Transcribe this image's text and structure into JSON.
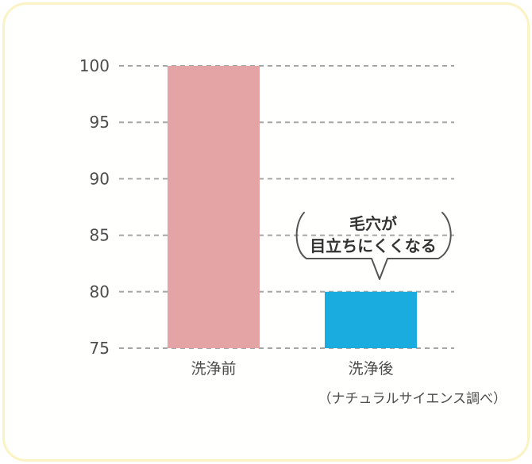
{
  "chart_data": {
    "type": "bar",
    "categories": [
      "洗浄前",
      "洗浄後"
    ],
    "values": [
      100,
      80
    ],
    "ylim": [
      75,
      100
    ],
    "yticks": [
      75,
      80,
      85,
      90,
      95,
      100
    ],
    "colors": [
      "#e4a4a5",
      "#1aabdf"
    ],
    "grid": true,
    "title": "",
    "xlabel": "",
    "ylabel": ""
  },
  "annotation": {
    "line1": "毛穴が",
    "line2": "目立ちにくくなる"
  },
  "source_note": "（ナチュラルサイエンス調べ）",
  "style": {
    "grid_color": "#a6a6a6",
    "text_color": "#4d4d4d",
    "frame_color": "#fbf3c4"
  }
}
